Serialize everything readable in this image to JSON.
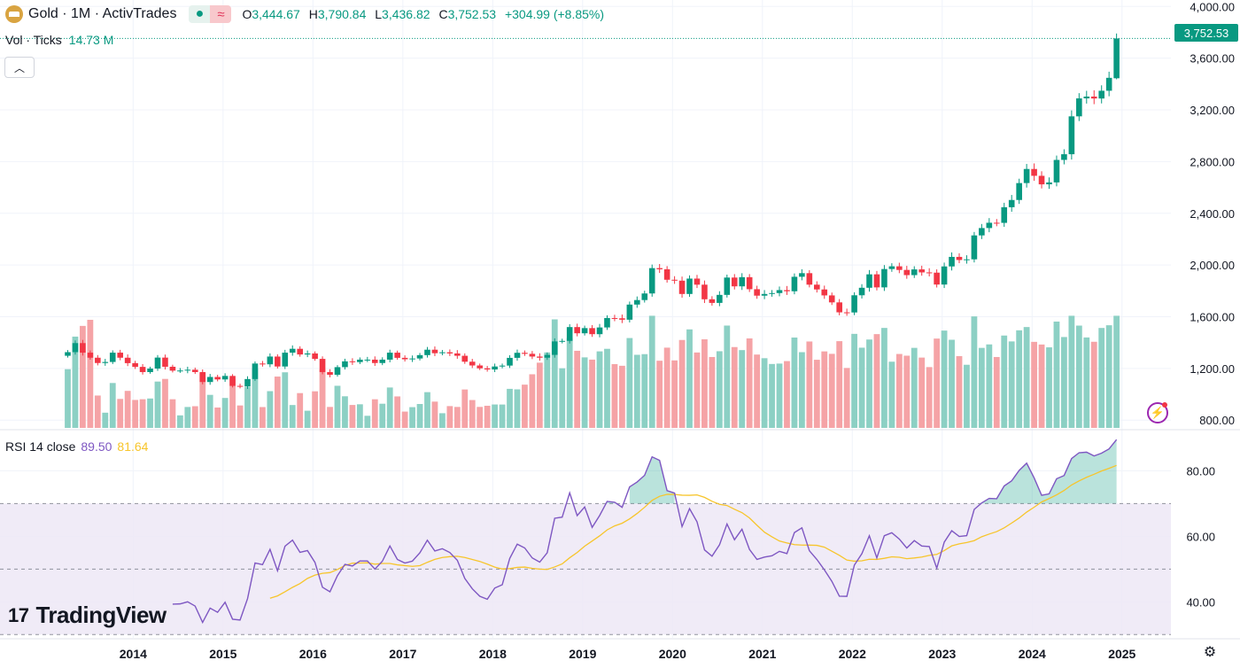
{
  "header": {
    "symbol": "Gold · 1M · ActivTrades",
    "logo_icon": "gold-bar-icon",
    "pill_icons": [
      "dot-icon",
      "wave-icon"
    ],
    "o_label": "O",
    "o_value": "3,444.67",
    "h_label": "H",
    "h_value": "3,790.84",
    "l_label": "L",
    "l_value": "3,436.82",
    "c_label": "C",
    "c_value": "3,752.53",
    "change": "+304.99 (+8.85%)"
  },
  "volume_legend": {
    "label": "Vol · Ticks",
    "value": "14.73 M"
  },
  "rsi_legend": {
    "label": "RSI 14 close",
    "rsi_value": "89.50",
    "ma_value": "81.64"
  },
  "last_price_tag": "3,752.53",
  "brand": {
    "name": "TradingView",
    "mark": "17"
  },
  "colors": {
    "up": "#089981",
    "down": "#f23645",
    "vol_up": "#8cd0c4",
    "vol_down": "#f5a3a6",
    "rsi_line": "#7e57c2",
    "rsi_ma": "#f7c52b",
    "rsi_band": "#ede7f6"
  },
  "chart_data": [
    {
      "type": "candlestick",
      "title": "Gold · 1M · ActivTrades",
      "timeframe": "monthly",
      "price_axis": {
        "ticks": [
          "800.00",
          "1,200.00",
          "1,600.00",
          "2,000.00",
          "2,400.00",
          "2,800.00",
          "3,200.00",
          "3,600.00",
          "4,000.00"
        ],
        "range": [
          740,
          4050
        ]
      },
      "time_axis": {
        "ticks": [
          "2014",
          "2015",
          "2016",
          "2017",
          "2018",
          "2019",
          "2020",
          "2021",
          "2022",
          "2023",
          "2024",
          "2025"
        ]
      },
      "series": [
        {
          "name": "Gold",
          "close": [
            1326,
            1396,
            1322,
            1283,
            1242,
            1250,
            1322,
            1283,
            1241,
            1212,
            1172,
            1199,
            1284,
            1213,
            1183,
            1184,
            1190,
            1172,
            1095,
            1134,
            1115,
            1142,
            1065,
            1061,
            1118,
            1238,
            1232,
            1292,
            1215,
            1322,
            1352,
            1308,
            1316,
            1274,
            1172,
            1151,
            1210,
            1255,
            1249,
            1268,
            1268,
            1242,
            1268,
            1322,
            1282,
            1271,
            1277,
            1303,
            1345,
            1318,
            1325,
            1316,
            1298,
            1252,
            1223,
            1201,
            1192,
            1215,
            1222,
            1282,
            1321,
            1313,
            1292,
            1283,
            1305,
            1409,
            1413,
            1520,
            1472,
            1512,
            1465,
            1517,
            1590,
            1588,
            1577,
            1694,
            1729,
            1780,
            1976,
            1967,
            1886,
            1879,
            1776,
            1895,
            1848,
            1735,
            1707,
            1769,
            1903,
            1835,
            1906,
            1813,
            1763,
            1776,
            1783,
            1806,
            1797,
            1909,
            1937,
            1848,
            1811,
            1765,
            1711,
            1634,
            1633,
            1766,
            1824,
            1928,
            1827,
            1969,
            1990,
            1962,
            1922,
            1966,
            1943,
            1941,
            1849,
            1989,
            2063,
            2039,
            2044,
            2229,
            2286,
            2327,
            2326,
            2447,
            2503,
            2634,
            2743,
            2690,
            2624,
            2639,
            2813,
            2857,
            3150,
            3289,
            3303,
            3288,
            3348,
            3448,
            3752.53
          ]
        }
      ],
      "volume": {
        "label": "Vol · Ticks",
        "last": "14.73 M",
        "ylim": [
          0,
          19
        ]
      },
      "last_price": 3752.53
    },
    {
      "type": "line",
      "title": "RSI 14 close",
      "ylim": [
        29,
        92
      ],
      "levels": [
        30,
        50,
        70
      ],
      "ticks": [
        "40.00",
        "60.00",
        "80.00"
      ],
      "series": [
        {
          "name": "RSI",
          "last": 89.5
        },
        {
          "name": "RSI MA",
          "last": 81.64
        }
      ]
    }
  ]
}
